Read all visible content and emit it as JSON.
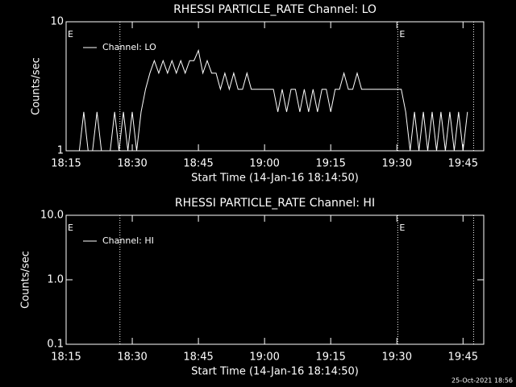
{
  "chart_data": [
    {
      "type": "line",
      "title": "RHESSI PARTICLE_RATE Channel: LO",
      "x_label": "Start Time (14-Jan-16 18:14:50)",
      "y_label": "Counts/sec",
      "log_y": true,
      "xlim": [
        0,
        94.7
      ],
      "ylim": [
        1,
        10
      ],
      "xticks": [
        {
          "value": 0,
          "label": "18:15"
        },
        {
          "value": 15,
          "label": "18:30"
        },
        {
          "value": 30,
          "label": "18:45"
        },
        {
          "value": 45,
          "label": "19:00"
        },
        {
          "value": 60,
          "label": "19:15"
        },
        {
          "value": 75,
          "label": "19:30"
        },
        {
          "value": 90,
          "label": "19:45"
        }
      ],
      "yticks": [
        1,
        10
      ],
      "vlines": [
        12.2,
        75.2,
        92.4
      ],
      "annotations": [
        {
          "text": "E",
          "x": 0
        },
        {
          "text": "E",
          "x": 75.2
        }
      ],
      "x": [
        3,
        4,
        5,
        6,
        7,
        8,
        9,
        10,
        11,
        12,
        13,
        14,
        15,
        16,
        17,
        18,
        19,
        20,
        21,
        22,
        23,
        24,
        25,
        26,
        27,
        28,
        29,
        30,
        31,
        32,
        33,
        34,
        35,
        36,
        37,
        38,
        39,
        40,
        41,
        42,
        43,
        44,
        45,
        46,
        47,
        48,
        49,
        50,
        51,
        52,
        53,
        54,
        55,
        56,
        57,
        58,
        59,
        60,
        61,
        62,
        63,
        64,
        65,
        66,
        67,
        68,
        69,
        70,
        71,
        72,
        73,
        74,
        75,
        76,
        77,
        78,
        79,
        80,
        81,
        82,
        83,
        84,
        85,
        86,
        87,
        88,
        89,
        90,
        91
      ],
      "series": [
        {
          "name": "Channel: LO",
          "color": "#ffffff",
          "values": [
            1,
            2,
            1,
            1,
            2,
            1,
            1,
            1,
            2,
            1,
            2,
            1,
            2,
            1,
            2,
            3,
            4,
            5,
            4,
            5,
            4,
            5,
            4,
            5,
            4,
            5,
            5,
            6,
            4,
            5,
            4,
            4,
            3,
            4,
            3,
            4,
            3,
            3,
            4,
            3,
            3,
            3,
            3,
            3,
            3,
            2,
            3,
            2,
            3,
            3,
            2,
            3,
            2,
            3,
            2,
            3,
            3,
            2,
            3,
            3,
            4,
            3,
            3,
            4,
            3,
            3,
            3,
            3,
            3,
            3,
            3,
            3,
            3,
            3,
            2,
            1,
            2,
            1,
            2,
            1,
            2,
            1,
            2,
            1,
            2,
            1,
            2,
            1,
            2
          ]
        }
      ]
    },
    {
      "type": "line",
      "title": "RHESSI PARTICLE_RATE Channel: HI",
      "x_label": "Start Time (14-Jan-16 18:14:50)",
      "y_label": "Counts/sec",
      "log_y": true,
      "xlim": [
        0,
        94.7
      ],
      "ylim": [
        0.1,
        10
      ],
      "xticks": [
        {
          "value": 0,
          "label": "18:15"
        },
        {
          "value": 15,
          "label": "18:30"
        },
        {
          "value": 30,
          "label": "18:45"
        },
        {
          "value": 45,
          "label": "19:00"
        },
        {
          "value": 60,
          "label": "19:15"
        },
        {
          "value": 75,
          "label": "19:30"
        },
        {
          "value": 90,
          "label": "19:45"
        }
      ],
      "yticks": [
        {
          "value": 0.1,
          "label": "0.1"
        },
        {
          "value": 1,
          "label": "1.0"
        },
        {
          "value": 10,
          "label": "10.0"
        }
      ],
      "vlines": [
        12.2,
        75.2,
        92.4
      ],
      "annotations": [
        {
          "text": "E",
          "x": 0
        },
        {
          "text": "E",
          "x": 75.2
        }
      ],
      "x": [],
      "series": [
        {
          "name": "Channel: HI",
          "color": "#ffffff",
          "values": []
        }
      ]
    }
  ],
  "footer": "25-Oct-2021 18:56"
}
